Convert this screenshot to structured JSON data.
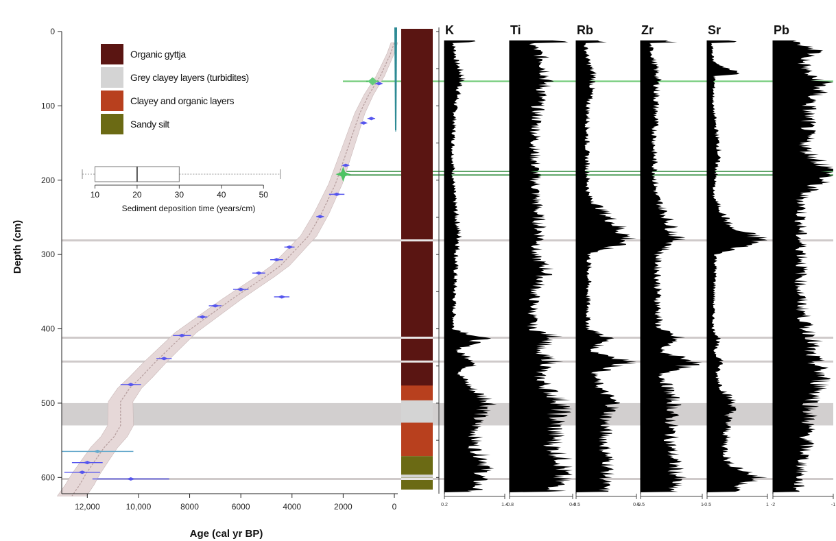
{
  "chart_data": [
    {
      "type": "scatter",
      "xlabel": "Age (cal yr BP)",
      "ylabel": "Depth (cm)",
      "xlim": [
        13000,
        0
      ],
      "ylim": [
        620,
        0
      ],
      "x_ticks": [
        "12,000",
        "10,000",
        "8000",
        "6000",
        "4000",
        "2000",
        "0"
      ],
      "x_tick_values": [
        12000,
        10000,
        8000,
        6000,
        4000,
        2000,
        0
      ],
      "y_ticks": [
        "0",
        "100",
        "200",
        "300",
        "400",
        "500",
        "600"
      ],
      "y_tick_values": [
        0,
        100,
        200,
        300,
        400,
        500,
        600
      ],
      "age_model": {
        "age": [
          0,
          150,
          550,
          1000,
          1350,
          1650,
          1950,
          2300,
          2850,
          3350,
          3900,
          4450,
          5050,
          5700,
          6350,
          6950,
          7550,
          8150,
          8750,
          9350,
          9900,
          10350,
          10700,
          10700,
          10950,
          11350,
          11750,
          12050,
          12300,
          12600
        ],
        "depth": [
          15,
          30,
          60,
          85,
          110,
          140,
          170,
          205,
          245,
          275,
          295,
          315,
          330,
          345,
          360,
          375,
          390,
          405,
          425,
          445,
          465,
          480,
          498,
          530,
          545,
          560,
          580,
          595,
          610,
          625
        ]
      },
      "dates": [
        {
          "age": 600,
          "depth": 70,
          "err": 80,
          "color": "#5555ee"
        },
        {
          "age": 900,
          "depth": 117,
          "err": 150,
          "color": "#5555ee"
        },
        {
          "age": 1200,
          "depth": 123,
          "err": 60,
          "color": "#5555ee"
        },
        {
          "age": 1900,
          "depth": 180,
          "err": 100,
          "color": "#5555ee"
        },
        {
          "age": 2250,
          "depth": 219,
          "err": 300,
          "color": "#5555ee"
        },
        {
          "age": 2900,
          "depth": 249,
          "err": 150,
          "color": "#5555ee"
        },
        {
          "age": 4100,
          "depth": 290,
          "err": 200,
          "color": "#5555ee"
        },
        {
          "age": 4600,
          "depth": 307,
          "err": 250,
          "color": "#5555ee"
        },
        {
          "age": 5300,
          "depth": 325,
          "err": 250,
          "color": "#5555ee"
        },
        {
          "age": 6000,
          "depth": 347,
          "err": 300,
          "color": "#5555ee"
        },
        {
          "age": 4400,
          "depth": 357,
          "err": 300,
          "color": "#5555ee"
        },
        {
          "age": 7000,
          "depth": 369,
          "err": 250,
          "color": "#5555ee"
        },
        {
          "age": 7500,
          "depth": 384,
          "err": 200,
          "color": "#5555ee"
        },
        {
          "age": 8300,
          "depth": 409,
          "err": 350,
          "color": "#5555ee"
        },
        {
          "age": 9000,
          "depth": 440,
          "err": 300,
          "color": "#5555ee"
        },
        {
          "age": 10300,
          "depth": 475,
          "err": 400,
          "color": "#5555ee"
        },
        {
          "age": 11600,
          "depth": 565,
          "err": 1400,
          "color": "#66aacc"
        },
        {
          "age": 12000,
          "depth": 580,
          "err": 600,
          "color": "#5555ee"
        },
        {
          "age": 12200,
          "depth": 593,
          "err": 700,
          "color": "#5555ee"
        },
        {
          "age": 10300,
          "depth": 602,
          "err": 1500,
          "color": "#5555ee"
        }
      ],
      "tephra_dates": [
        {
          "age": 850,
          "depth": 67,
          "err": 250
        },
        {
          "age": 2000,
          "depth": 192,
          "err": 200
        }
      ],
      "boxplot": {
        "xlabel": "Sediment deposition time (years/cm)",
        "ticks": [
          10,
          20,
          30,
          40,
          50
        ],
        "xlim": [
          7,
          55
        ],
        "whisker_min": 7,
        "q1": 10,
        "median": 20,
        "q3": 30,
        "whisker_max": 54
      },
      "legend": [
        {
          "label": "Organic gyttja",
          "color": "#5a1512"
        },
        {
          "label": "Grey clayey layers (turbidites)",
          "color": "#d4d4d4"
        },
        {
          "label": "Clayey and organic layers",
          "color": "#b8401e"
        },
        {
          "label": "Sandy silt",
          "color": "#6b6a14"
        }
      ]
    },
    {
      "type": "area",
      "ylim": [
        620,
        0
      ],
      "lithology": [
        {
          "top": 0,
          "bottom": 480,
          "unit": "Organic gyttja"
        },
        {
          "top": 480,
          "bottom": 500,
          "unit": "Clayey and organic layers"
        },
        {
          "top": 500,
          "bottom": 530,
          "unit": "Grey clayey layers (turbidites)"
        },
        {
          "top": 530,
          "bottom": 575,
          "unit": "Clayey and organic layers"
        },
        {
          "top": 575,
          "bottom": 600,
          "unit": "Sandy silt"
        },
        {
          "top": 600,
          "bottom": 604,
          "unit": "Grey clayey layers (turbidites)"
        },
        {
          "top": 604,
          "bottom": 620,
          "unit": "Sandy silt"
        }
      ],
      "turbidite_lines": [
        281,
        412,
        444,
        602
      ],
      "turbidite_band": [
        500,
        530
      ],
      "tephra_lines": [
        67,
        188,
        193
      ],
      "elements": [
        {
          "name": "K",
          "xmin": "0.2",
          "xmax": "1.4",
          "depth": [
            15,
            40,
            60,
            100,
            160,
            220,
            280,
            300,
            350,
            400,
            412,
            430,
            444,
            460,
            480,
            500,
            520,
            560,
            580,
            600,
            620
          ],
          "value": [
            0.15,
            0.2,
            0.3,
            0.18,
            0.14,
            0.16,
            0.25,
            0.2,
            0.17,
            0.15,
            0.65,
            0.2,
            0.55,
            0.25,
            0.45,
            0.8,
            0.55,
            0.5,
            0.72,
            0.6,
            0.5
          ]
        },
        {
          "name": "Ti",
          "xmin": "-0.8",
          "xmax": "0.4",
          "depth": [
            15,
            40,
            60,
            100,
            160,
            220,
            280,
            300,
            320,
            350,
            400,
            412,
            430,
            444,
            460,
            480,
            500,
            520,
            560,
            580,
            600,
            620
          ],
          "value": [
            0.35,
            0.55,
            0.6,
            0.45,
            0.4,
            0.42,
            0.5,
            0.38,
            0.6,
            0.4,
            0.36,
            0.75,
            0.4,
            0.7,
            0.45,
            0.6,
            0.85,
            0.75,
            0.7,
            0.9,
            0.8,
            0.75
          ]
        },
        {
          "name": "Rb",
          "xmin": "-0.5",
          "xmax": "0.5",
          "depth": [
            15,
            40,
            60,
            100,
            160,
            220,
            280,
            300,
            350,
            400,
            412,
            430,
            444,
            460,
            480,
            500,
            520,
            560,
            580,
            600,
            620
          ],
          "value": [
            0.15,
            0.2,
            0.3,
            0.2,
            0.18,
            0.2,
            0.9,
            0.22,
            0.2,
            0.2,
            0.55,
            0.25,
            0.95,
            0.3,
            0.4,
            0.65,
            0.5,
            0.48,
            0.55,
            0.5,
            0.45
          ]
        },
        {
          "name": "Zr",
          "xmin": "-0.5",
          "xmax": "1",
          "depth": [
            15,
            40,
            60,
            100,
            160,
            220,
            280,
            300,
            350,
            400,
            412,
            430,
            444,
            460,
            480,
            500,
            520,
            560,
            580,
            600,
            620
          ],
          "value": [
            0.15,
            0.22,
            0.28,
            0.25,
            0.22,
            0.25,
            0.6,
            0.28,
            0.28,
            0.3,
            0.6,
            0.3,
            0.95,
            0.35,
            0.45,
            0.55,
            0.5,
            0.5,
            0.55,
            0.6,
            0.5
          ]
        },
        {
          "name": "Sr",
          "xmin": "-0.5",
          "xmax": "1",
          "depth": [
            15,
            40,
            58,
            60,
            100,
            160,
            220,
            265,
            270,
            280,
            300,
            350,
            400,
            412,
            430,
            444,
            460,
            480,
            500,
            520,
            560,
            580,
            600,
            620
          ],
          "value": [
            0.08,
            0.1,
            0.55,
            0.12,
            0.1,
            0.2,
            0.1,
            0.4,
            0.6,
            0.95,
            0.15,
            0.12,
            0.1,
            0.2,
            0.12,
            0.25,
            0.15,
            0.25,
            0.45,
            0.35,
            0.3,
            0.35,
            0.85,
            0.4
          ]
        },
        {
          "name": "Pb",
          "xmin": "-2",
          "xmax": "-1",
          "depth": [
            15,
            25,
            40,
            60,
            67,
            100,
            160,
            188,
            220,
            280,
            300,
            350,
            400,
            412,
            430,
            444,
            460,
            480,
            500,
            520,
            560,
            580,
            600,
            620
          ],
          "value": [
            0.35,
            0.75,
            0.5,
            0.6,
            0.85,
            0.6,
            0.55,
            1.0,
            0.5,
            0.45,
            0.5,
            0.45,
            0.55,
            0.7,
            0.6,
            0.7,
            0.8,
            0.8,
            0.65,
            0.6,
            0.55,
            0.5,
            0.45,
            0.4
          ]
        }
      ]
    }
  ]
}
